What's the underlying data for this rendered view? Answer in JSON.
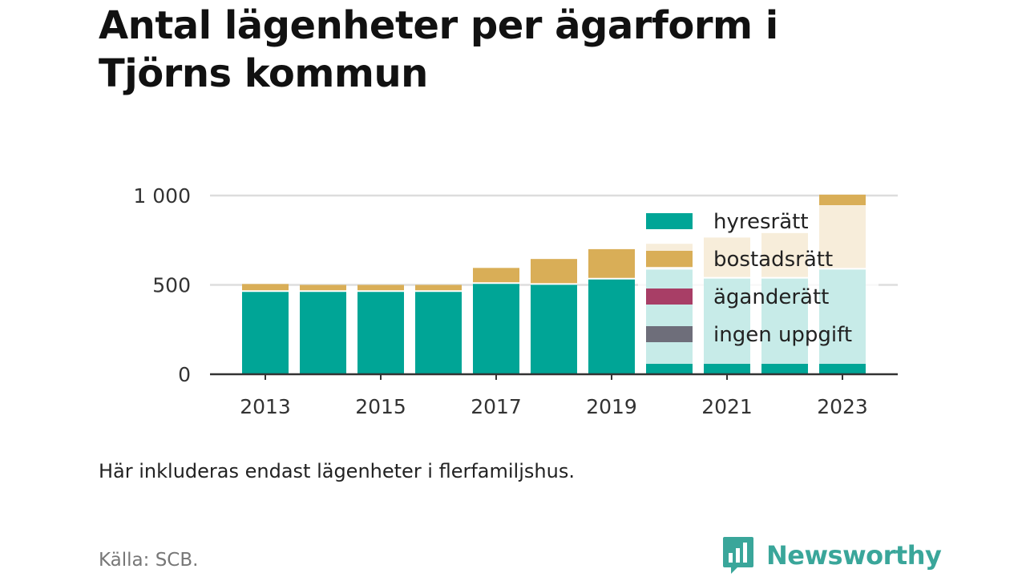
{
  "title": {
    "line1": "Antal lägenheter per ägarform i",
    "line2": "Tjörns kommun"
  },
  "note": "Här inkluderas endast lägenheter i flerfamiljshus.",
  "source": "Källa: SCB.",
  "brand": {
    "name": "Newsworthy",
    "color": "#3aa69a",
    "icon": "bar-chart-speech-bubble-icon"
  },
  "chart_data": {
    "type": "bar",
    "stacked": true,
    "categories": [
      "2013",
      "2014",
      "2015",
      "2016",
      "2017",
      "2018",
      "2019",
      "2020",
      "2021",
      "2022",
      "2023"
    ],
    "x_tick_labels": [
      "2013",
      "2015",
      "2017",
      "2019",
      "2021",
      "2023"
    ],
    "y_ticks": [
      0,
      500,
      1000
    ],
    "y_tick_labels": [
      "0",
      "500",
      "1 000"
    ],
    "ylim": [
      0,
      1000
    ],
    "grid": true,
    "legend_position": "top-right",
    "series": [
      {
        "name": "hyresrätt",
        "color": "#00a596",
        "values": [
          465,
          465,
          465,
          465,
          510,
          505,
          535,
          590,
          540,
          540,
          590
        ]
      },
      {
        "name": "bostadsrätt",
        "color": "#d9ae57",
        "values": [
          40,
          35,
          35,
          35,
          85,
          140,
          165,
          140,
          225,
          250,
          415
        ]
      },
      {
        "name": "äganderätt",
        "color": "#a83e66",
        "values": [
          0,
          0,
          0,
          0,
          0,
          0,
          0,
          0,
          0,
          0,
          0
        ]
      },
      {
        "name": "ingen uppgift",
        "color": "#6e6e7a",
        "values": [
          0,
          0,
          0,
          0,
          0,
          0,
          0,
          0,
          0,
          0,
          0
        ]
      }
    ]
  }
}
